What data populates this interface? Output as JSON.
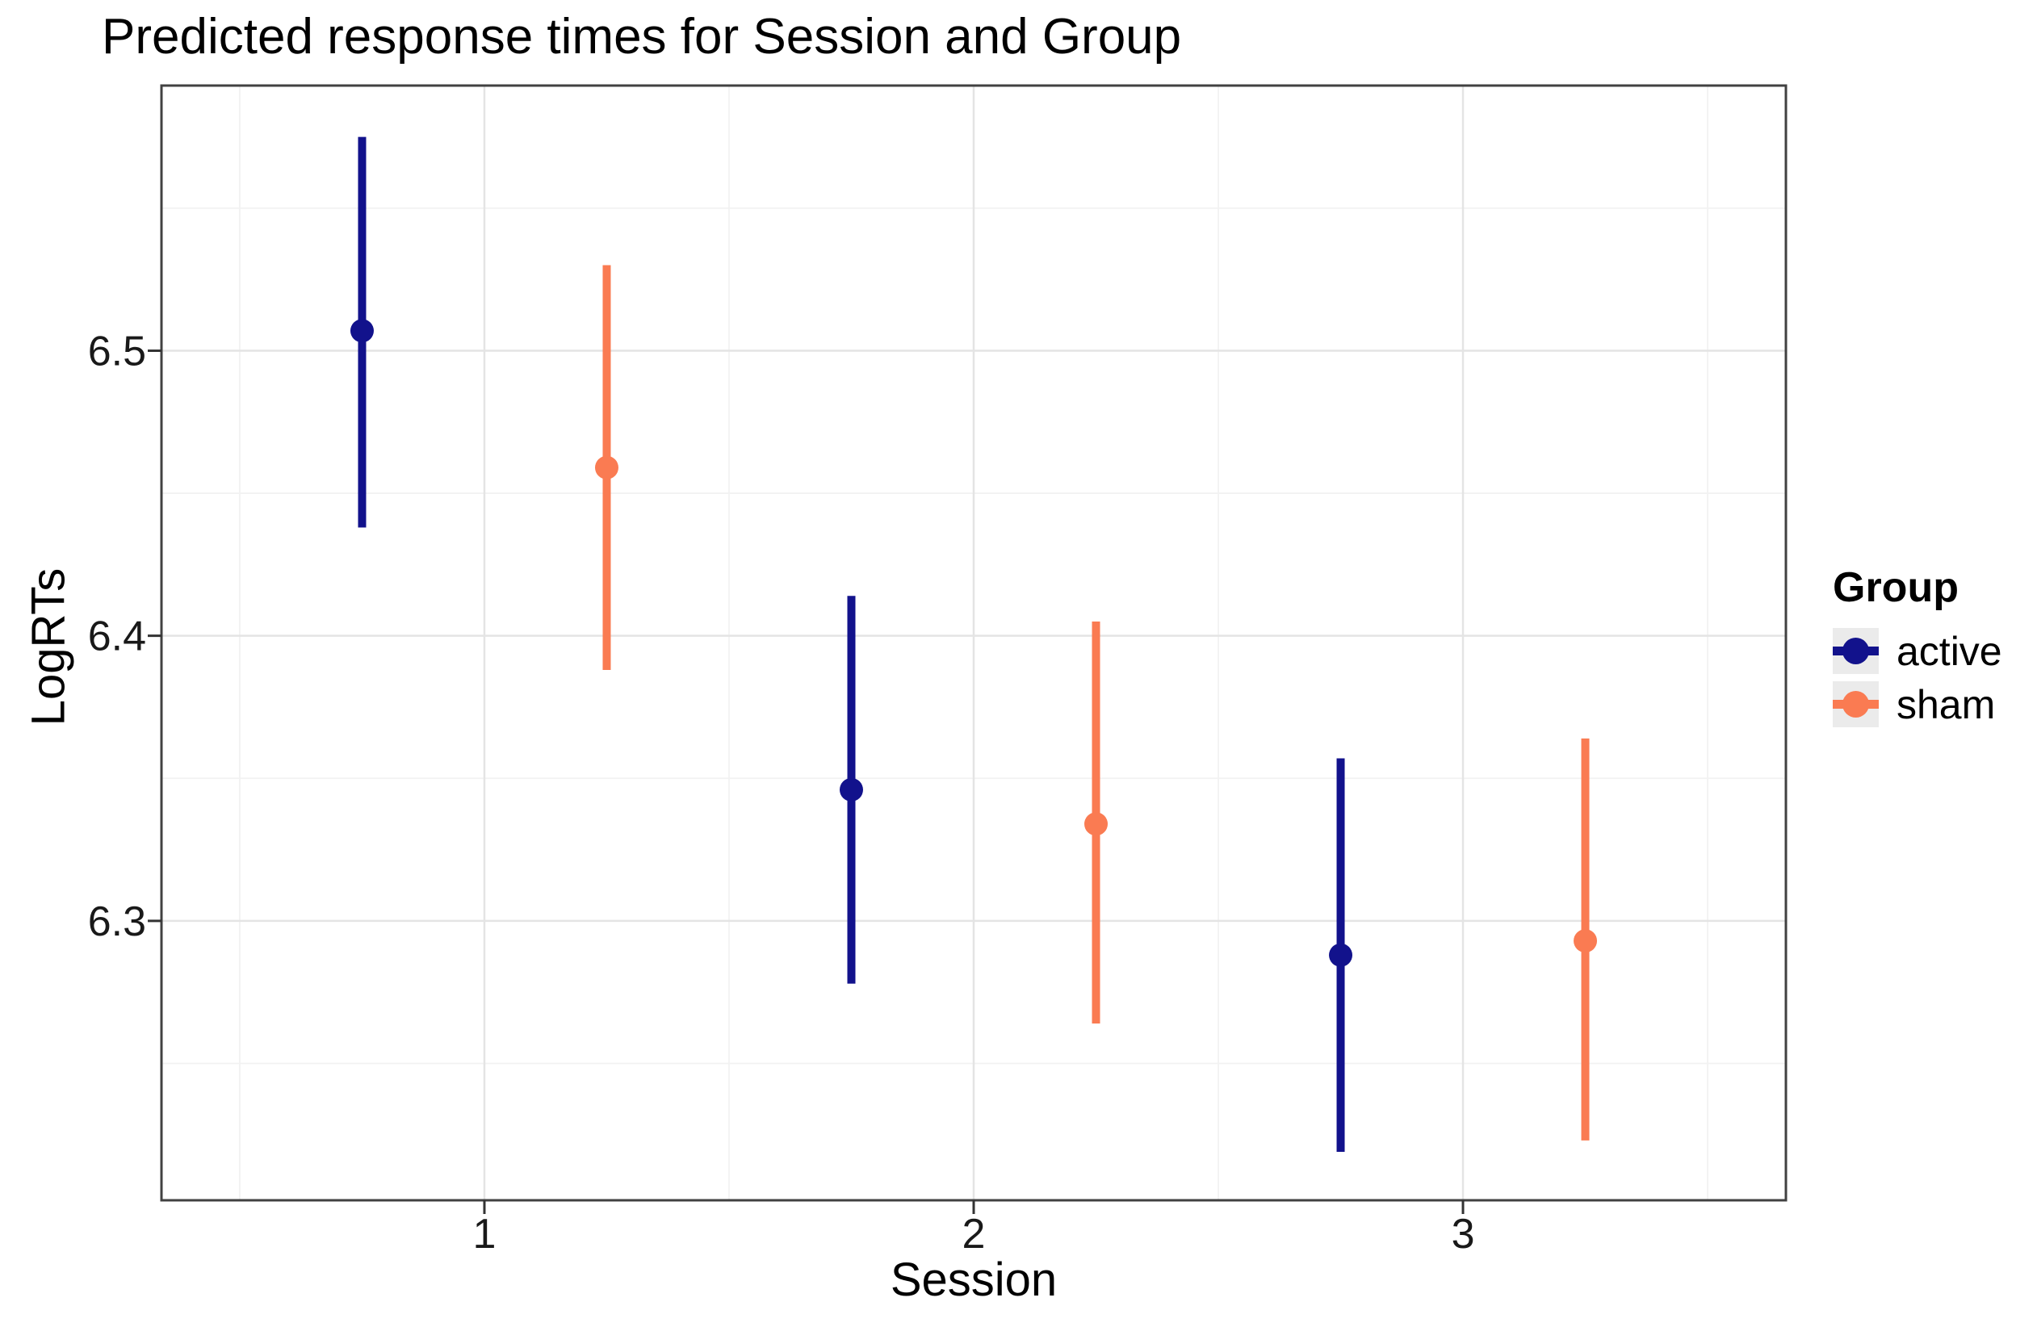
{
  "title": "Predicted response times for Session and Group",
  "axes": {
    "x": {
      "label": "Session",
      "tick_labels": [
        "1",
        "2",
        "3"
      ],
      "tick_values": [
        1,
        2,
        3
      ],
      "minor_tick_values": [
        0.5,
        1.5,
        2.5,
        3.5
      ]
    },
    "y": {
      "label": "LogRTs",
      "tick_labels": [
        "6.3",
        "6.4",
        "6.5"
      ],
      "tick_values": [
        6.3,
        6.4,
        6.5
      ],
      "minor_tick_values": [
        6.25,
        6.35,
        6.45,
        6.55
      ]
    }
  },
  "legend": {
    "title": "Group",
    "items": [
      {
        "label": "active",
        "color": "#12128C"
      },
      {
        "label": "sham",
        "color": "#FA7B52"
      }
    ]
  },
  "chart_data": {
    "type": "pointrange",
    "title": "Predicted response times for Session and Group",
    "xlabel": "Session",
    "ylabel": "LogRTs",
    "categories": [
      1,
      2,
      3
    ],
    "series": [
      {
        "name": "active",
        "color": "#12128C",
        "x_offset": -0.25,
        "points": [
          {
            "x": 1,
            "y": 6.507,
            "ymin": 6.438,
            "ymax": 6.575
          },
          {
            "x": 2,
            "y": 6.346,
            "ymin": 6.278,
            "ymax": 6.414
          },
          {
            "x": 3,
            "y": 6.288,
            "ymin": 6.219,
            "ymax": 6.357
          }
        ]
      },
      {
        "name": "sham",
        "color": "#FA7B52",
        "x_offset": 0.25,
        "points": [
          {
            "x": 1,
            "y": 6.459,
            "ymin": 6.388,
            "ymax": 6.53
          },
          {
            "x": 2,
            "y": 6.334,
            "ymin": 6.264,
            "ymax": 6.405
          },
          {
            "x": 3,
            "y": 6.293,
            "ymin": 6.223,
            "ymax": 6.364
          }
        ]
      }
    ],
    "xlim": [
      0.34,
      3.66
    ],
    "ylim": [
      6.202,
      6.593
    ],
    "grid": true,
    "legend_position": "right"
  },
  "style": {
    "grid_major_color": "#E4E4E4",
    "grid_minor_color": "#F2F2F2",
    "panel_border_color": "#414141",
    "tick_color": "#333333",
    "key_background": "#EBEBEB"
  }
}
